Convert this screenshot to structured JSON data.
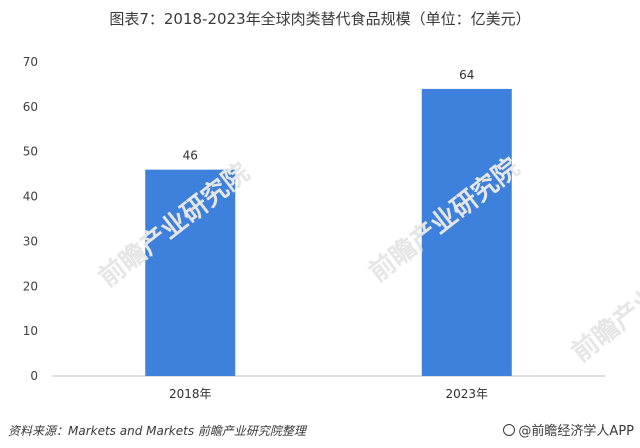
{
  "chart_data": {
    "type": "bar",
    "title": "图表7：2018-2023年全球肉类替代食品规模（单位：亿美元）",
    "categories": [
      "2018年",
      "2023年"
    ],
    "values": [
      46,
      64
    ],
    "data_labels": [
      "46",
      "64"
    ],
    "ylim": [
      0,
      70
    ],
    "yticks": [
      0,
      10,
      20,
      30,
      40,
      50,
      60,
      70
    ],
    "grid": false,
    "bar_color": "#3E81DD",
    "axis_color": "#bfbfbf",
    "xlabel": "",
    "ylabel": ""
  },
  "source_text": "资料来源：Markets and Markets  前瞻产业研究院整理",
  "watermark": "前瞻产业研究院",
  "credit_text": "@前瞻经济学人APP"
}
